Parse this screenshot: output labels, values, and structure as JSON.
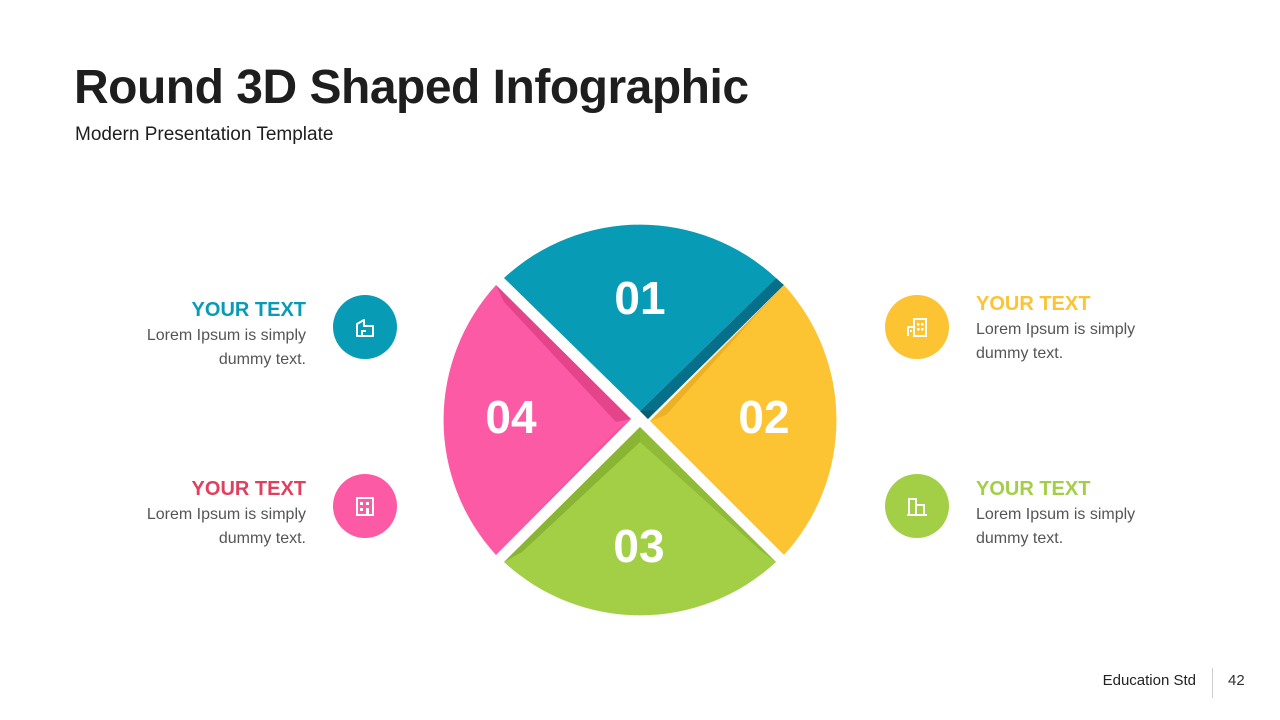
{
  "slide": {
    "title": "Round 3D Shaped Infographic",
    "subtitle": "Modern Presentation Template"
  },
  "segments": [
    {
      "number": "01",
      "color": "#089bb5",
      "heading": "YOUR TEXT",
      "heading_color": "#089bb5",
      "body": "Lorem Ipsum is simply dummy text.",
      "icon": "house-icon"
    },
    {
      "number": "02",
      "color": "#fcc333",
      "heading": "YOUR TEXT",
      "heading_color": "#fcc333",
      "body": "Lorem Ipsum is simply dummy text.",
      "icon": "buildings-icon"
    },
    {
      "number": "03",
      "color": "#a2cf46",
      "heading": "YOUR TEXT",
      "heading_color": "#a2cf46",
      "body": "Lorem Ipsum is simply dummy text.",
      "icon": "building-icon"
    },
    {
      "number": "04",
      "color": "#fd5aa5",
      "heading": "YOUR TEXT",
      "heading_color": "#e0405e",
      "body": "Lorem Ipsum is simply dummy text.",
      "icon": "office-icon"
    }
  ],
  "footer": {
    "brand": "Education Std",
    "page": "42"
  }
}
